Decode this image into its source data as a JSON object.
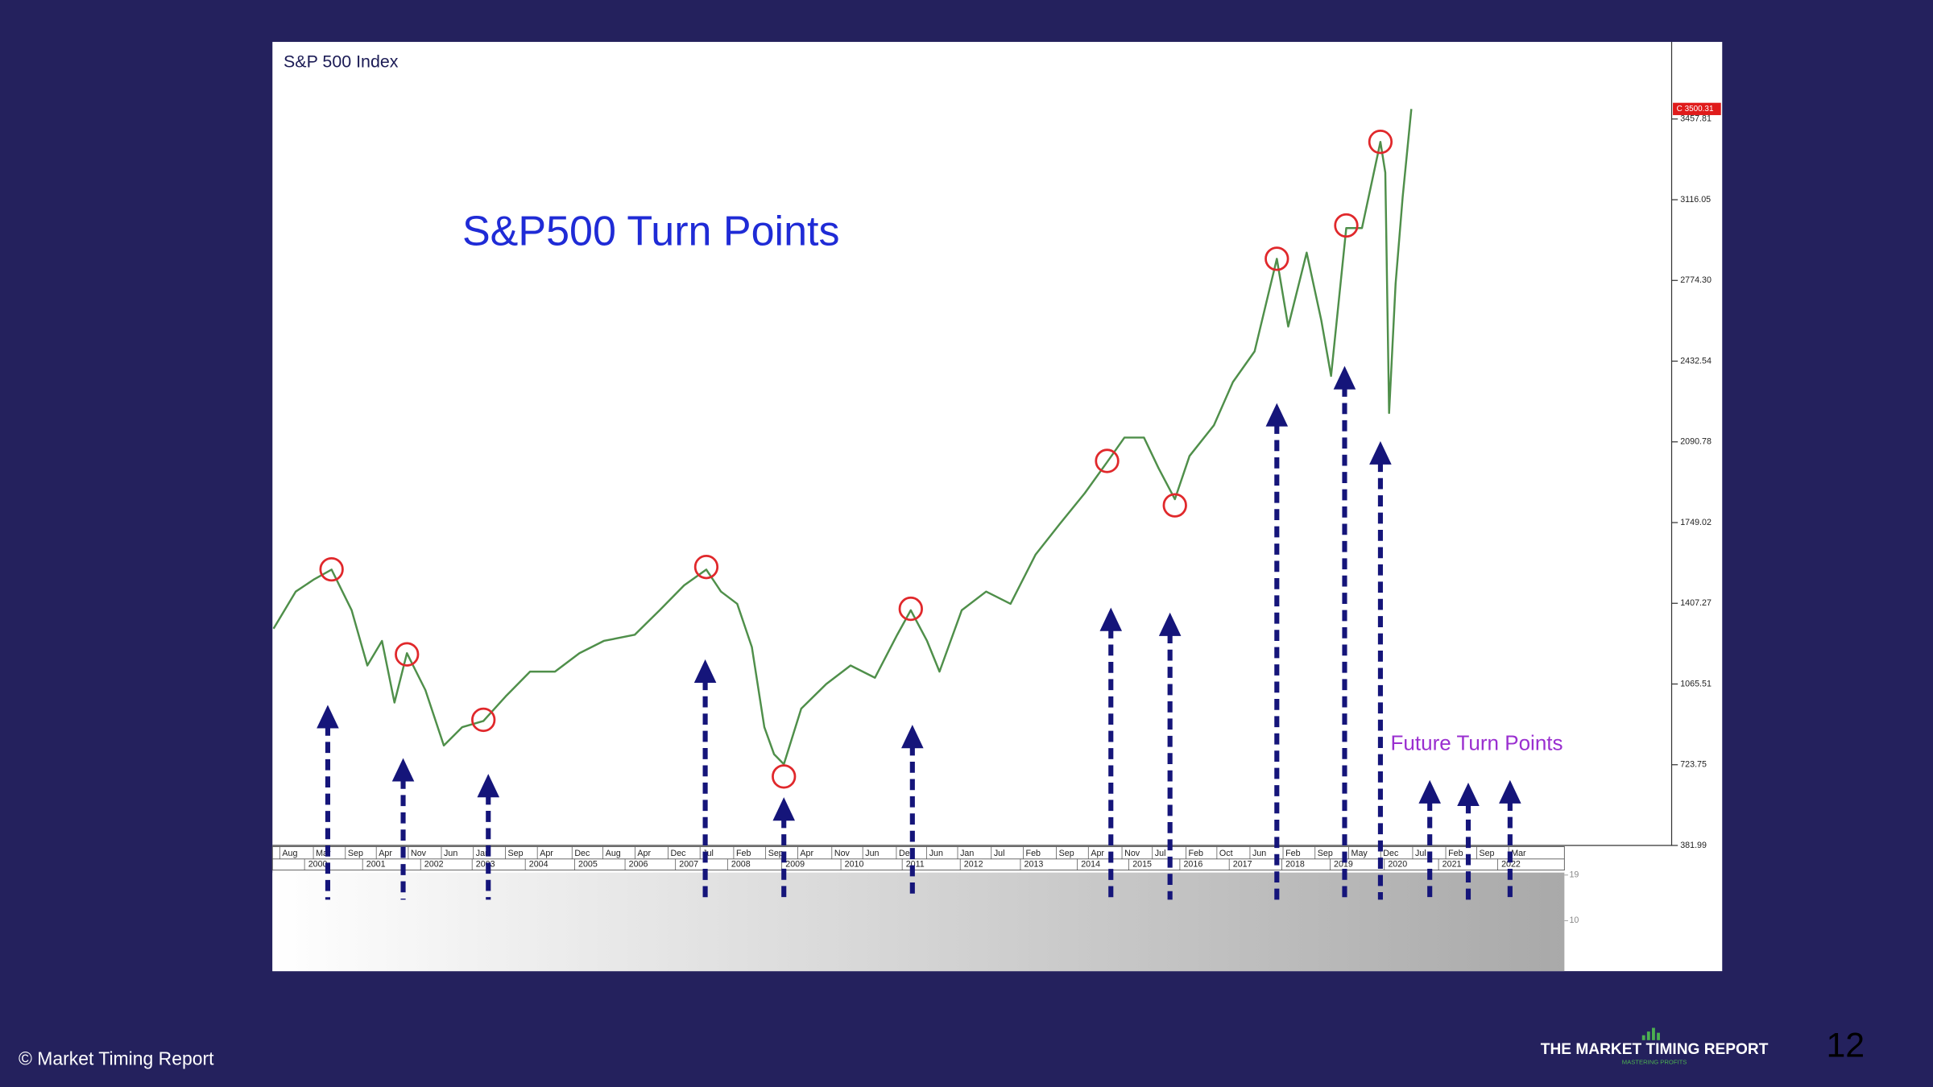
{
  "slide": {
    "copyright": "© Market Timing Report",
    "logo": "THE MARKET TIMING REPORT",
    "logo_tagline": "MASTERING PROFITS",
    "page_number": "12"
  },
  "chart_data": {
    "type": "line",
    "title": "S&P 500 Index",
    "annotation": "S&P500 Turn Points",
    "future_label": "Future Turn Points",
    "series": [
      {
        "color": "#4f8f4a",
        "x": [
          1999.36,
          1999.77,
          2000.11,
          2000.43,
          2000.8,
          2001.09,
          2001.36,
          2001.59,
          2001.82,
          2002.16,
          2002.5,
          2002.84,
          2003.23,
          2003.64,
          2004.09,
          2004.55,
          2005.0,
          2005.45,
          2006.02,
          2006.48,
          2006.93,
          2007.34,
          2007.61,
          2007.91,
          2008.18,
          2008.41,
          2008.59,
          2008.77,
          2009.09,
          2009.55,
          2010.0,
          2010.45,
          2010.86,
          2011.11,
          2011.41,
          2011.64,
          2012.05,
          2012.5,
          2012.95,
          2013.41,
          2013.86,
          2014.32,
          2014.73,
          2015.05,
          2015.41,
          2015.68,
          2015.98,
          2016.25,
          2016.7,
          2017.05,
          2017.45,
          2017.86,
          2018.07,
          2018.41,
          2018.68,
          2018.86,
          2019.14,
          2019.43,
          2019.77,
          2019.86,
          2019.93,
          2020.05,
          2020.18,
          2020.34
        ],
        "values": [
          1300,
          1457,
          1509,
          1550,
          1378,
          1144,
          1248,
          987,
          1196,
          1040,
          805,
          883,
          909,
          1013,
          1118,
          1118,
          1196,
          1248,
          1274,
          1378,
          1483,
          1550,
          1457,
          1405,
          1222,
          883,
          768,
          726,
          961,
          1065,
          1144,
          1092,
          1274,
          1378,
          1248,
          1118,
          1378,
          1457,
          1405,
          1613,
          1744,
          1874,
          2005,
          2109,
          2109,
          1979,
          1848,
          2031,
          2161,
          2344,
          2474,
          2866,
          2579,
          2892,
          2605,
          2370,
          2996,
          2996,
          3361,
          3231,
          2213,
          2761,
          3127,
          3500.31
        ]
      }
    ],
    "xlim": [
      1999.34,
      2025.14
    ],
    "ylim": [
      381.99,
      3779
    ],
    "yticks": [
      381.99,
      723.75,
      1065.51,
      1407.27,
      1749.02,
      2090.78,
      2432.54,
      {
        "value": 2774.3,
        "label": "2774.30"
      },
      3116.05,
      3457.81
    ],
    "last_price": {
      "value": 3500.31,
      "label": "C 3500.31"
    },
    "xticks": [
      {
        "value": 2000.0,
        "label": "2000"
      },
      {
        "value": 2001.07,
        "label": "2001"
      },
      {
        "value": 2002.14,
        "label": "2002"
      },
      {
        "value": 2003.09,
        "label": "2003"
      },
      {
        "value": 2004.07,
        "label": "2004"
      },
      {
        "value": 2004.98,
        "label": "2005"
      },
      {
        "value": 2005.91,
        "label": "2006"
      },
      {
        "value": 2006.84,
        "label": "2007"
      },
      {
        "value": 2007.8,
        "label": "2008"
      },
      {
        "value": 2008.8,
        "label": "2009"
      },
      {
        "value": 2009.89,
        "label": "2010"
      },
      {
        "value": 2011.02,
        "label": "2011"
      },
      {
        "value": 2012.09,
        "label": "2012"
      },
      {
        "value": 2013.2,
        "label": "2013"
      },
      {
        "value": 2014.25,
        "label": "2014"
      },
      {
        "value": 2015.2,
        "label": "2015"
      },
      {
        "value": 2016.14,
        "label": "2016"
      },
      {
        "value": 2017.05,
        "label": "2017"
      },
      {
        "value": 2018.02,
        "label": "2018"
      },
      {
        "value": 2018.91,
        "label": "2019"
      },
      {
        "value": 2019.91,
        "label": "2020"
      },
      {
        "value": 2020.91,
        "label": "2021"
      },
      {
        "value": 2022.0,
        "label": "2022"
      }
    ],
    "month_ticks": [
      {
        "value": 1999.52,
        "label": "Aug"
      },
      {
        "value": 2000.14,
        "label": "Mar"
      },
      {
        "value": 2000.73,
        "label": "Sep"
      },
      {
        "value": 2001.3,
        "label": "Apr"
      },
      {
        "value": 2001.89,
        "label": "Nov"
      },
      {
        "value": 2002.5,
        "label": "Jun"
      },
      {
        "value": 2003.09,
        "label": "Jan"
      },
      {
        "value": 2003.68,
        "label": "Sep"
      },
      {
        "value": 2004.27,
        "label": "Apr"
      },
      {
        "value": 2004.91,
        "label": "Dec"
      },
      {
        "value": 2005.48,
        "label": "Aug"
      },
      {
        "value": 2006.07,
        "label": "Apr"
      },
      {
        "value": 2006.68,
        "label": "Dec"
      },
      {
        "value": 2007.27,
        "label": "Jul"
      },
      {
        "value": 2007.89,
        "label": "Feb"
      },
      {
        "value": 2008.48,
        "label": "Sep"
      },
      {
        "value": 2009.07,
        "label": "Apr"
      },
      {
        "value": 2009.7,
        "label": "Nov"
      },
      {
        "value": 2010.27,
        "label": "Jun"
      },
      {
        "value": 2010.89,
        "label": "Dec"
      },
      {
        "value": 2011.45,
        "label": "Jun"
      },
      {
        "value": 2012.02,
        "label": "Jan"
      },
      {
        "value": 2012.64,
        "label": "Jul"
      },
      {
        "value": 2013.23,
        "label": "Feb"
      },
      {
        "value": 2013.84,
        "label": "Sep"
      },
      {
        "value": 2014.43,
        "label": "Apr"
      },
      {
        "value": 2015.05,
        "label": "Nov"
      },
      {
        "value": 2015.61,
        "label": "Jul"
      },
      {
        "value": 2016.23,
        "label": "Feb"
      },
      {
        "value": 2016.8,
        "label": "Oct"
      },
      {
        "value": 2017.41,
        "label": "Jun"
      },
      {
        "value": 2018.02,
        "label": "Feb"
      },
      {
        "value": 2018.61,
        "label": "Sep"
      },
      {
        "value": 2019.23,
        "label": "May"
      },
      {
        "value": 2019.82,
        "label": "Dec"
      },
      {
        "value": 2020.41,
        "label": "Jul"
      },
      {
        "value": 2021.02,
        "label": "Feb"
      },
      {
        "value": 2021.59,
        "label": "Sep"
      },
      {
        "value": 2022.18,
        "label": "Mar"
      }
    ],
    "turn_points": {
      "color": "#e0282b",
      "x": [
        2000.43,
        2001.82,
        2003.23,
        2007.34,
        2008.77,
        2011.11,
        2014.73,
        2015.98,
        2017.86,
        2019.14,
        2019.77
      ],
      "values": [
        1551,
        1191,
        914,
        1561,
        674,
        1384,
        2010,
        1822,
        2866,
        3007,
        3361
      ]
    },
    "arrows": {
      "color": "#15157a",
      "x": [
        2000.36,
        2001.75,
        2003.32,
        2007.32,
        2008.77,
        2011.14,
        2014.8,
        2015.89,
        2017.86,
        2019.11,
        2019.77,
        2020.68,
        2021.39,
        2022.16
      ],
      "values": [
        977,
        752,
        685,
        1170,
        586,
        893,
        1389,
        1368,
        2255,
        2412,
        2094,
        659,
        648,
        659
      ]
    },
    "y2lim": [
      0,
      19.5
    ],
    "y2ticks": [
      19,
      10
    ]
  }
}
